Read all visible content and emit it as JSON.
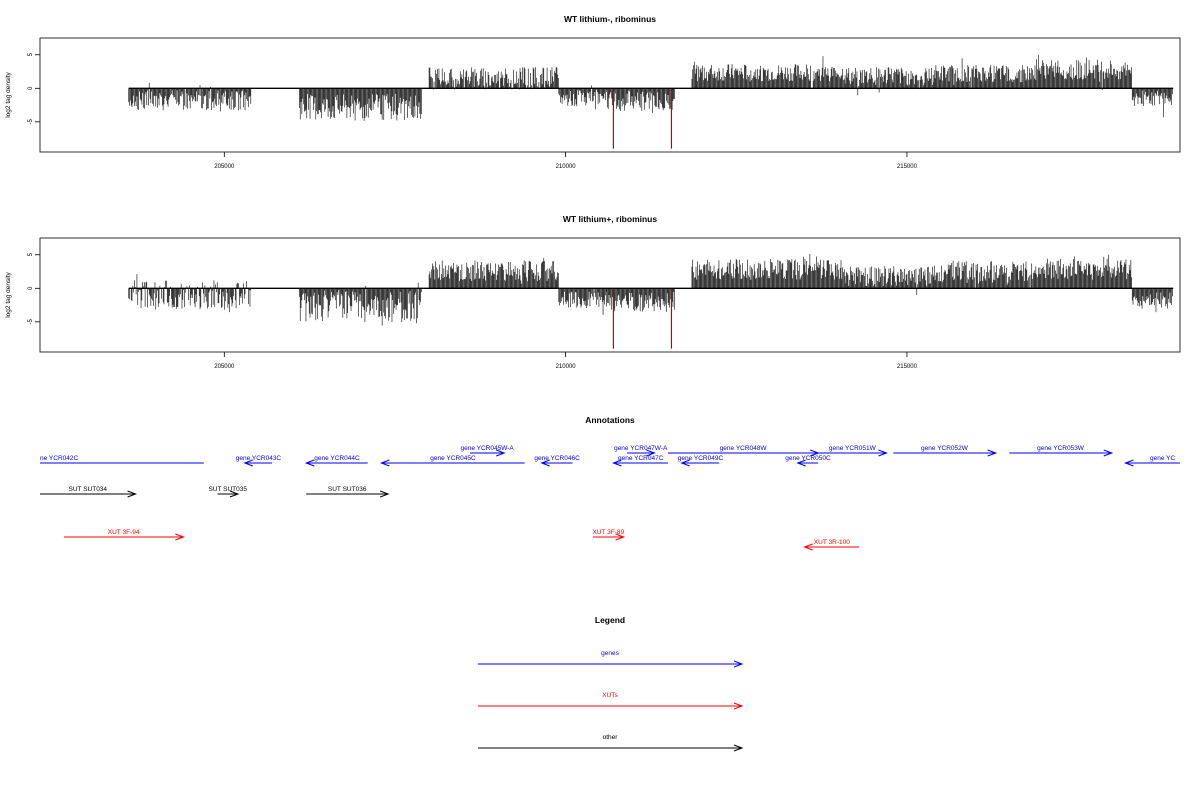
{
  "colors": {
    "gene": "#0000ff",
    "xut": "#ff0000",
    "other": "#000000",
    "bar": "#000000",
    "highlight": "#cc0000"
  },
  "chart_data": [
    {
      "type": "bar",
      "title": "WT lithium-, ribominus",
      "ylabel": "log2 tag density",
      "xlim": [
        202300,
        219000
      ],
      "ylim": [
        -9.5,
        7.5
      ],
      "x_ticks": [
        205000,
        210000,
        215000
      ],
      "y_ticks": [
        -5,
        0,
        5
      ],
      "x_tick_labels": [
        "205000",
        "210000",
        "215000"
      ],
      "y_tick_labels": [
        "-5",
        "0",
        "5"
      ],
      "highlight_bars": [
        {
          "x": 210700,
          "y": -9.0
        },
        {
          "x": 211550,
          "y": -9.0
        }
      ],
      "segments": [
        {
          "start": 203600,
          "end": 205400,
          "mean": -1.8,
          "amp": 1.5
        },
        {
          "start": 206100,
          "end": 207900,
          "mean": -2.8,
          "amp": 2.0
        },
        {
          "start": 208000,
          "end": 209900,
          "mean": 1.5,
          "amp": 1.7
        },
        {
          "start": 209900,
          "end": 210600,
          "mean": -1.5,
          "amp": 1.2
        },
        {
          "start": 210600,
          "end": 211600,
          "mean": -1.8,
          "amp": 1.6
        },
        {
          "start": 211850,
          "end": 214100,
          "mean": 2.3,
          "amp": 1.3
        },
        {
          "start": 214100,
          "end": 215400,
          "mean": 1.8,
          "amp": 1.4
        },
        {
          "start": 215400,
          "end": 216900,
          "mean": 2.2,
          "amp": 1.3
        },
        {
          "start": 216900,
          "end": 218300,
          "mean": 2.8,
          "amp": 1.5
        },
        {
          "start": 218300,
          "end": 218900,
          "mean": -1.5,
          "amp": 1.2
        }
      ]
    },
    {
      "type": "bar",
      "title": "WT lithium+, ribominus",
      "ylabel": "log2 tag density",
      "xlim": [
        202300,
        219000
      ],
      "ylim": [
        -9.5,
        7.5
      ],
      "x_ticks": [
        205000,
        210000,
        215000
      ],
      "y_ticks": [
        -5,
        0,
        5
      ],
      "x_tick_labels": [
        "205000",
        "210000",
        "215000"
      ],
      "y_tick_labels": [
        "-5",
        "0",
        "5"
      ],
      "highlight_bars": [
        {
          "x": 210700,
          "y": -9.0
        },
        {
          "x": 211550,
          "y": -9.0
        }
      ],
      "segments": [
        {
          "start": 203600,
          "end": 205400,
          "mean": -1.0,
          "amp": 2.2
        },
        {
          "start": 206100,
          "end": 207900,
          "mean": -2.7,
          "amp": 2.4
        },
        {
          "start": 208000,
          "end": 209900,
          "mean": 2.6,
          "amp": 1.6
        },
        {
          "start": 209900,
          "end": 210600,
          "mean": -1.8,
          "amp": 1.3
        },
        {
          "start": 210600,
          "end": 211600,
          "mean": -2.0,
          "amp": 1.5
        },
        {
          "start": 211850,
          "end": 214100,
          "mean": 2.8,
          "amp": 1.6
        },
        {
          "start": 214100,
          "end": 215400,
          "mean": 1.8,
          "amp": 1.5
        },
        {
          "start": 215400,
          "end": 216900,
          "mean": 2.4,
          "amp": 1.7
        },
        {
          "start": 216900,
          "end": 218300,
          "mean": 2.8,
          "amp": 1.6
        },
        {
          "start": 218300,
          "end": 218900,
          "mean": -1.8,
          "amp": 1.3
        }
      ]
    }
  ],
  "annotations": {
    "title": "Annotations",
    "items": [
      {
        "label": "ne YCR042C",
        "kind": "gene",
        "start": 202300,
        "end": 204700,
        "dir": "none",
        "row": 0
      },
      {
        "label": "gene YCR043C",
        "kind": "gene",
        "start": 205300,
        "end": 205700,
        "dir": "left",
        "row": 0
      },
      {
        "label": "gene YCR044C",
        "kind": "gene",
        "start": 206200,
        "end": 207100,
        "dir": "left",
        "row": 0
      },
      {
        "label": "gene YCR045W-A",
        "kind": "gene",
        "start": 208600,
        "end": 209100,
        "dir": "right",
        "row": 1
      },
      {
        "label": "gene YCR045C",
        "kind": "gene",
        "start": 207300,
        "end": 209400,
        "dir": "left",
        "row": 0
      },
      {
        "label": "gene YCR046C",
        "kind": "gene",
        "start": 209650,
        "end": 210100,
        "dir": "left",
        "row": 0
      },
      {
        "label": "gene YCR047W-A",
        "kind": "gene",
        "start": 210900,
        "end": 211300,
        "dir": "right",
        "row": 1
      },
      {
        "label": "gene YCR047C",
        "kind": "gene",
        "start": 210700,
        "end": 211500,
        "dir": "left",
        "row": 0
      },
      {
        "label": "gene YCR048W",
        "kind": "gene",
        "start": 211500,
        "end": 213700,
        "dir": "right",
        "row": 1
      },
      {
        "label": "gene YCR049C",
        "kind": "gene",
        "start": 211700,
        "end": 212250,
        "dir": "left",
        "row": 0
      },
      {
        "label": "gene YCR050C",
        "kind": "gene",
        "start": 213400,
        "end": 213700,
        "dir": "left",
        "row": 0
      },
      {
        "label": "gene YCR051W",
        "kind": "gene",
        "start": 213700,
        "end": 214700,
        "dir": "right",
        "row": 1
      },
      {
        "label": "gene YCR052W",
        "kind": "gene",
        "start": 214800,
        "end": 216300,
        "dir": "right",
        "row": 1
      },
      {
        "label": "gene YCR053W",
        "kind": "gene",
        "start": 216500,
        "end": 218000,
        "dir": "right",
        "row": 1
      },
      {
        "label": "gene YC",
        "kind": "gene",
        "start": 218200,
        "end": 219000,
        "dir": "left",
        "row": 0
      },
      {
        "label": "SUT SUT034",
        "kind": "other",
        "start": 202300,
        "end": 203700,
        "dir": "right",
        "row": 2
      },
      {
        "label": "SUT SUT035",
        "kind": "other",
        "start": 204900,
        "end": 205200,
        "dir": "right",
        "row": 2
      },
      {
        "label": "SUT SUT036",
        "kind": "other",
        "start": 206200,
        "end": 207400,
        "dir": "right",
        "row": 2
      },
      {
        "label": "XUT 3F-94",
        "kind": "xut",
        "start": 202650,
        "end": 204400,
        "dir": "right",
        "row": 3
      },
      {
        "label": "XUT 3F-89",
        "kind": "xut",
        "start": 210400,
        "end": 210850,
        "dir": "right",
        "row": 3
      },
      {
        "label": "XUT 3R-100",
        "kind": "xut",
        "start": 213500,
        "end": 214300,
        "dir": "left",
        "row": 4
      }
    ]
  },
  "legend": {
    "title": "Legend",
    "items": [
      {
        "label": "genes",
        "kind": "gene"
      },
      {
        "label": "XUTs",
        "kind": "xut"
      },
      {
        "label": "other",
        "kind": "other"
      }
    ]
  }
}
